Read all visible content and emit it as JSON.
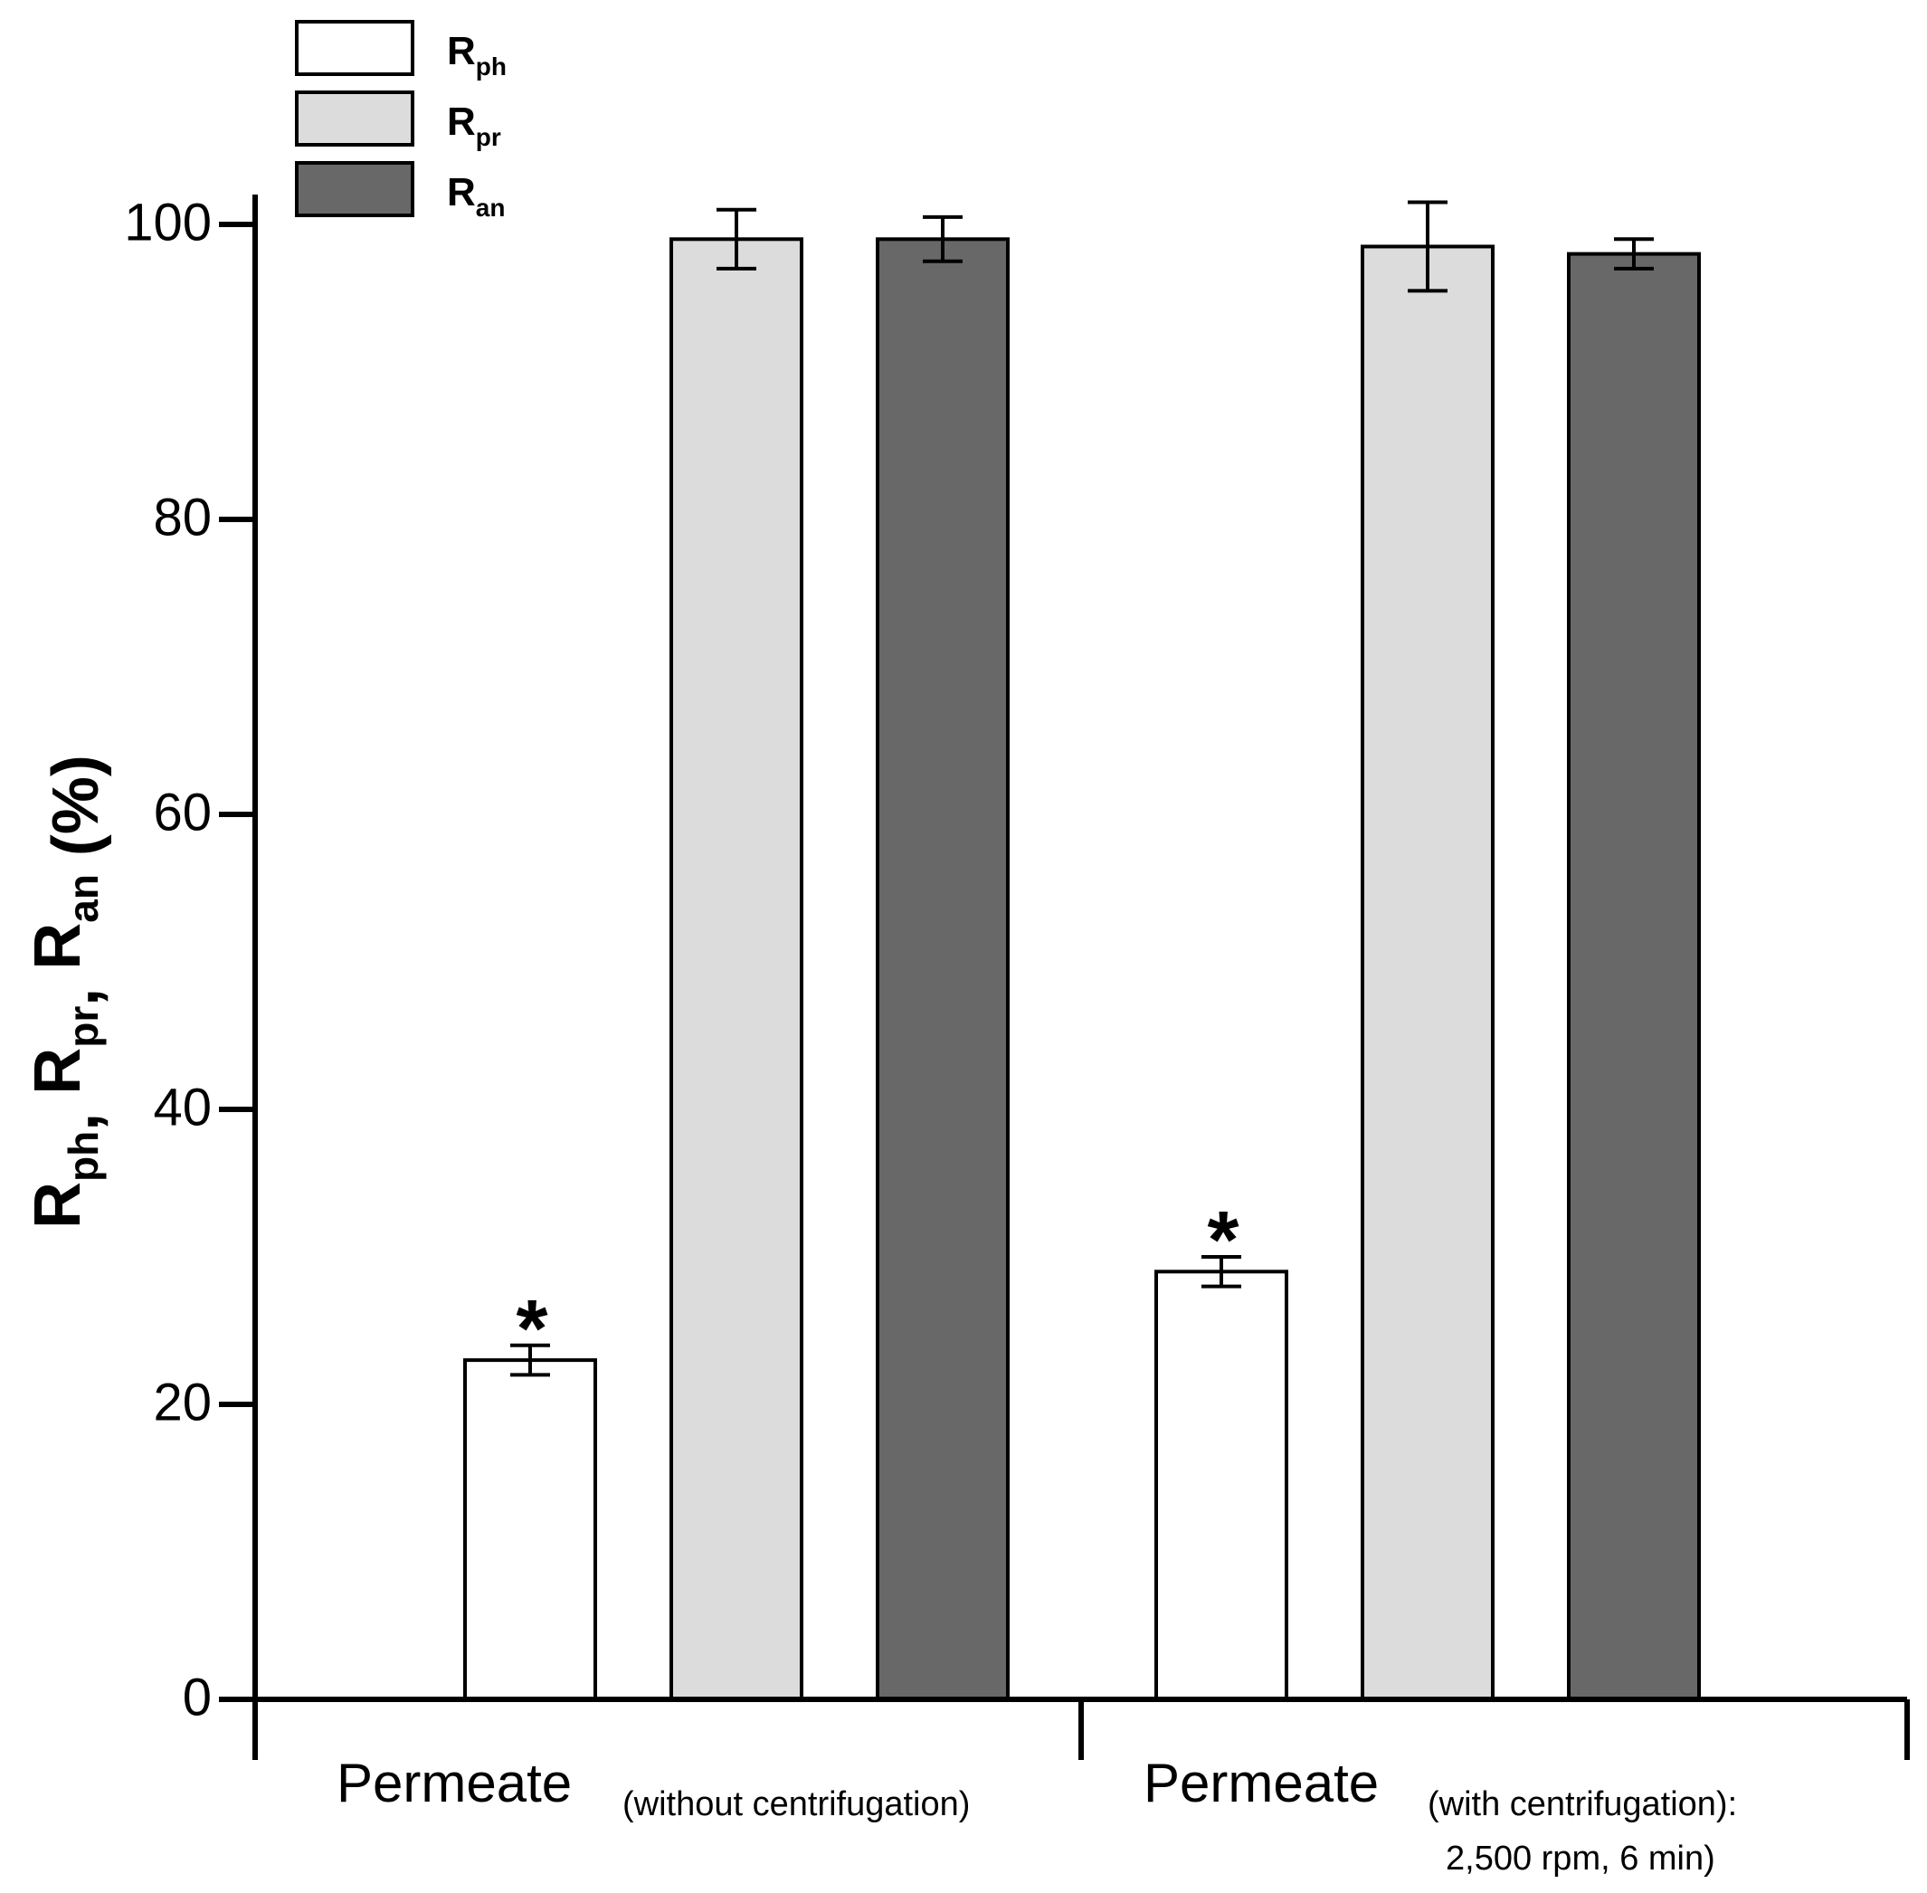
{
  "chart_data": {
    "type": "bar",
    "title": "",
    "ylabel": {
      "parts": [
        {
          "base": "R",
          "sub": "ph",
          "sep": ", "
        },
        {
          "base": "R",
          "sub": "pr",
          "sep": ", "
        },
        {
          "base": "R",
          "sub": "an",
          "sep": " (%)"
        }
      ]
    },
    "ylim": [
      0,
      100
    ],
    "yticks": [
      "0",
      "20",
      "40",
      "60",
      "80",
      "100"
    ],
    "categories": [
      {
        "main": "Permeate",
        "sub": "(without centrifugation)",
        "sub2": ""
      },
      {
        "main": "Permeate",
        "sub": "(with centrifugation):",
        "sub2": "2,500 rpm, 6 min)"
      }
    ],
    "series": [
      {
        "name": "Rph",
        "label_base": "R",
        "label_sub": "ph",
        "color": "#ffffff",
        "values": [
          23.0,
          29.0
        ],
        "errors": [
          1.0,
          1.0
        ],
        "markers": [
          "*",
          "*"
        ]
      },
      {
        "name": "Rpr",
        "label_base": "R",
        "label_sub": "pr",
        "color": "#dcdcdc",
        "values": [
          99.0,
          98.5
        ],
        "errors": [
          2.0,
          3.0
        ],
        "markers": [
          "",
          ""
        ]
      },
      {
        "name": "Ran",
        "label_base": "R",
        "label_sub": "an",
        "color": "#686868",
        "values": [
          99.0,
          98.0
        ],
        "errors": [
          1.5,
          1.0
        ],
        "markers": [
          "",
          ""
        ]
      }
    ],
    "legend": "top-left"
  }
}
